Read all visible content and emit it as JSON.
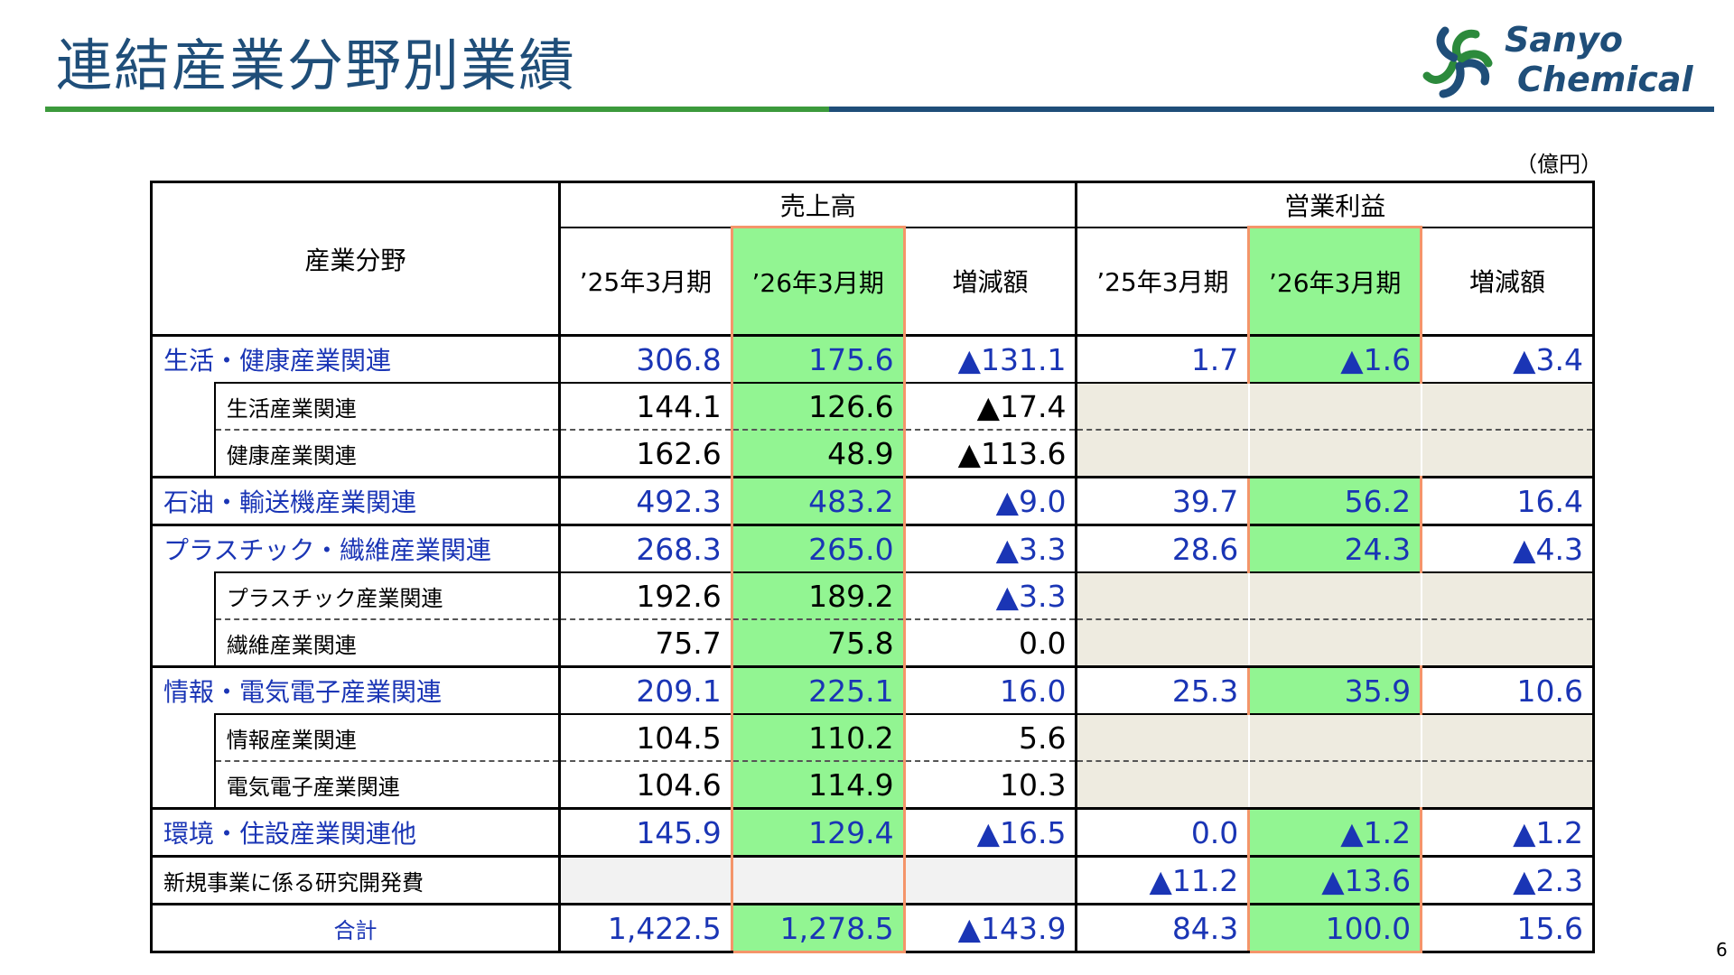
{
  "page_title": "連結産業分野別業績",
  "logo": {
    "line1": "Sanyo",
    "line2": "Chemical",
    "colors": [
      "#2c8a3c",
      "#1f4e79"
    ]
  },
  "unit": "（億円）",
  "page_number": "6",
  "table": {
    "corner_header": "産業分野",
    "group_headers": {
      "sales": "売上高",
      "op": "営業利益"
    },
    "sub_headers": [
      "’25年3月期",
      "’26年3月期",
      "増減額",
      "’25年3月期",
      "’26年3月期",
      "増減額"
    ],
    "rows": [
      {
        "label": "生活・健康産業関連",
        "s1": "306.8",
        "s2": "175.6",
        "sd": "▲131.1",
        "o1": "1.7",
        "o2": "▲1.6",
        "od": "▲3.4"
      },
      {
        "label": "生活産業関連",
        "s1": "144.1",
        "s2": "126.6",
        "sd": "▲17.4"
      },
      {
        "label": "健康産業関連",
        "s1": "162.6",
        "s2": "48.9",
        "sd": "▲113.6"
      },
      {
        "label": "石油・輸送機産業関連",
        "s1": "492.3",
        "s2": "483.2",
        "sd": "▲9.0",
        "o1": "39.7",
        "o2": "56.2",
        "od": "16.4"
      },
      {
        "label": "プラスチック・繊維産業関連",
        "s1": "268.3",
        "s2": "265.0",
        "sd": "▲3.3",
        "o1": "28.6",
        "o2": "24.3",
        "od": "▲4.3"
      },
      {
        "label": "プラスチック産業関連",
        "s1": "192.6",
        "s2": "189.2",
        "sd": "▲3.3"
      },
      {
        "label": "繊維産業関連",
        "s1": "75.7",
        "s2": "75.8",
        "sd": "0.0"
      },
      {
        "label": "情報・電気電子産業関連",
        "s1": "209.1",
        "s2": "225.1",
        "sd": "16.0",
        "o1": "25.3",
        "o2": "35.9",
        "od": "10.6"
      },
      {
        "label": "情報産業関連",
        "s1": "104.5",
        "s2": "110.2",
        "sd": "5.6"
      },
      {
        "label": "電気電子産業関連",
        "s1": "104.6",
        "s2": "114.9",
        "sd": "10.3"
      },
      {
        "label": "環境・住設産業関連他",
        "s1": "145.9",
        "s2": "129.4",
        "sd": "▲16.5",
        "o1": "0.0",
        "o2": "▲1.2",
        "od": "▲1.2"
      },
      {
        "label": "新規事業に係る研究開発費",
        "o1": "▲11.2",
        "o2": "▲13.6",
        "od": "▲2.3"
      },
      {
        "label": "合計",
        "s1": "1,422.5",
        "s2": "1,278.5",
        "sd": "▲143.9",
        "o1": "84.3",
        "o2": "100.0",
        "od": "15.6"
      }
    ]
  },
  "colors": {
    "highlight": "#92f592",
    "highlight_border": "#f4956a",
    "value_blue": "#1a35b5",
    "title_blue": "#1f4e79",
    "rule_green": "#3c9a3c"
  }
}
